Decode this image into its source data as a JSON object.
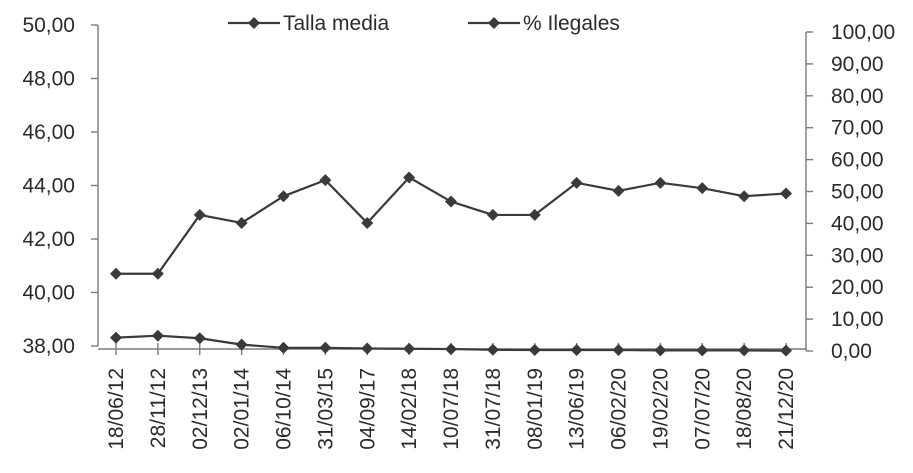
{
  "chart_data": {
    "type": "line",
    "categories": [
      "18/06/12",
      "28/11/12",
      "02/12/13",
      "02/01/14",
      "06/10/14",
      "31/03/15",
      "04/09/17",
      "14/02/18",
      "10/07/18",
      "31/07/18",
      "08/01/19",
      "13/06/19",
      "06/02/20",
      "19/02/20",
      "07/07/20",
      "18/08/20",
      "21/12/20"
    ],
    "series": [
      {
        "name": "Talla media",
        "axis": "left",
        "color": "#3a3a3a",
        "values": [
          40.7,
          40.7,
          42.9,
          42.6,
          43.6,
          44.2,
          42.6,
          44.3,
          43.4,
          42.9,
          42.9,
          44.1,
          43.8,
          44.1,
          43.9,
          43.6,
          43.7
        ]
      },
      {
        "name": "% Ilegales",
        "axis": "right",
        "color": "#3a3a3a",
        "values": [
          4.2,
          4.8,
          4.0,
          2.0,
          1.0,
          1.0,
          0.8,
          0.7,
          0.6,
          0.4,
          0.3,
          0.3,
          0.3,
          0.2,
          0.2,
          0.2,
          0.1
        ]
      }
    ],
    "y_left": {
      "range": [
        38,
        50
      ],
      "ticks": [
        "38,00",
        "40,00",
        "42,00",
        "44,00",
        "46,00",
        "48,00",
        "50,00"
      ],
      "tick_values": [
        38,
        40,
        42,
        44,
        46,
        48,
        50
      ]
    },
    "y_right": {
      "range": [
        0,
        100
      ],
      "ticks": [
        "0,00",
        "10,00",
        "20,00",
        "30,00",
        "40,00",
        "50,00",
        "60,00",
        "70,00",
        "80,00",
        "90,00",
        "100,00"
      ],
      "tick_values": [
        0,
        10,
        20,
        30,
        40,
        50,
        60,
        70,
        80,
        90,
        100
      ]
    },
    "legend": {
      "position": "top-center",
      "entries": [
        "Talla media",
        "% Ilegales"
      ]
    },
    "grid": false
  }
}
